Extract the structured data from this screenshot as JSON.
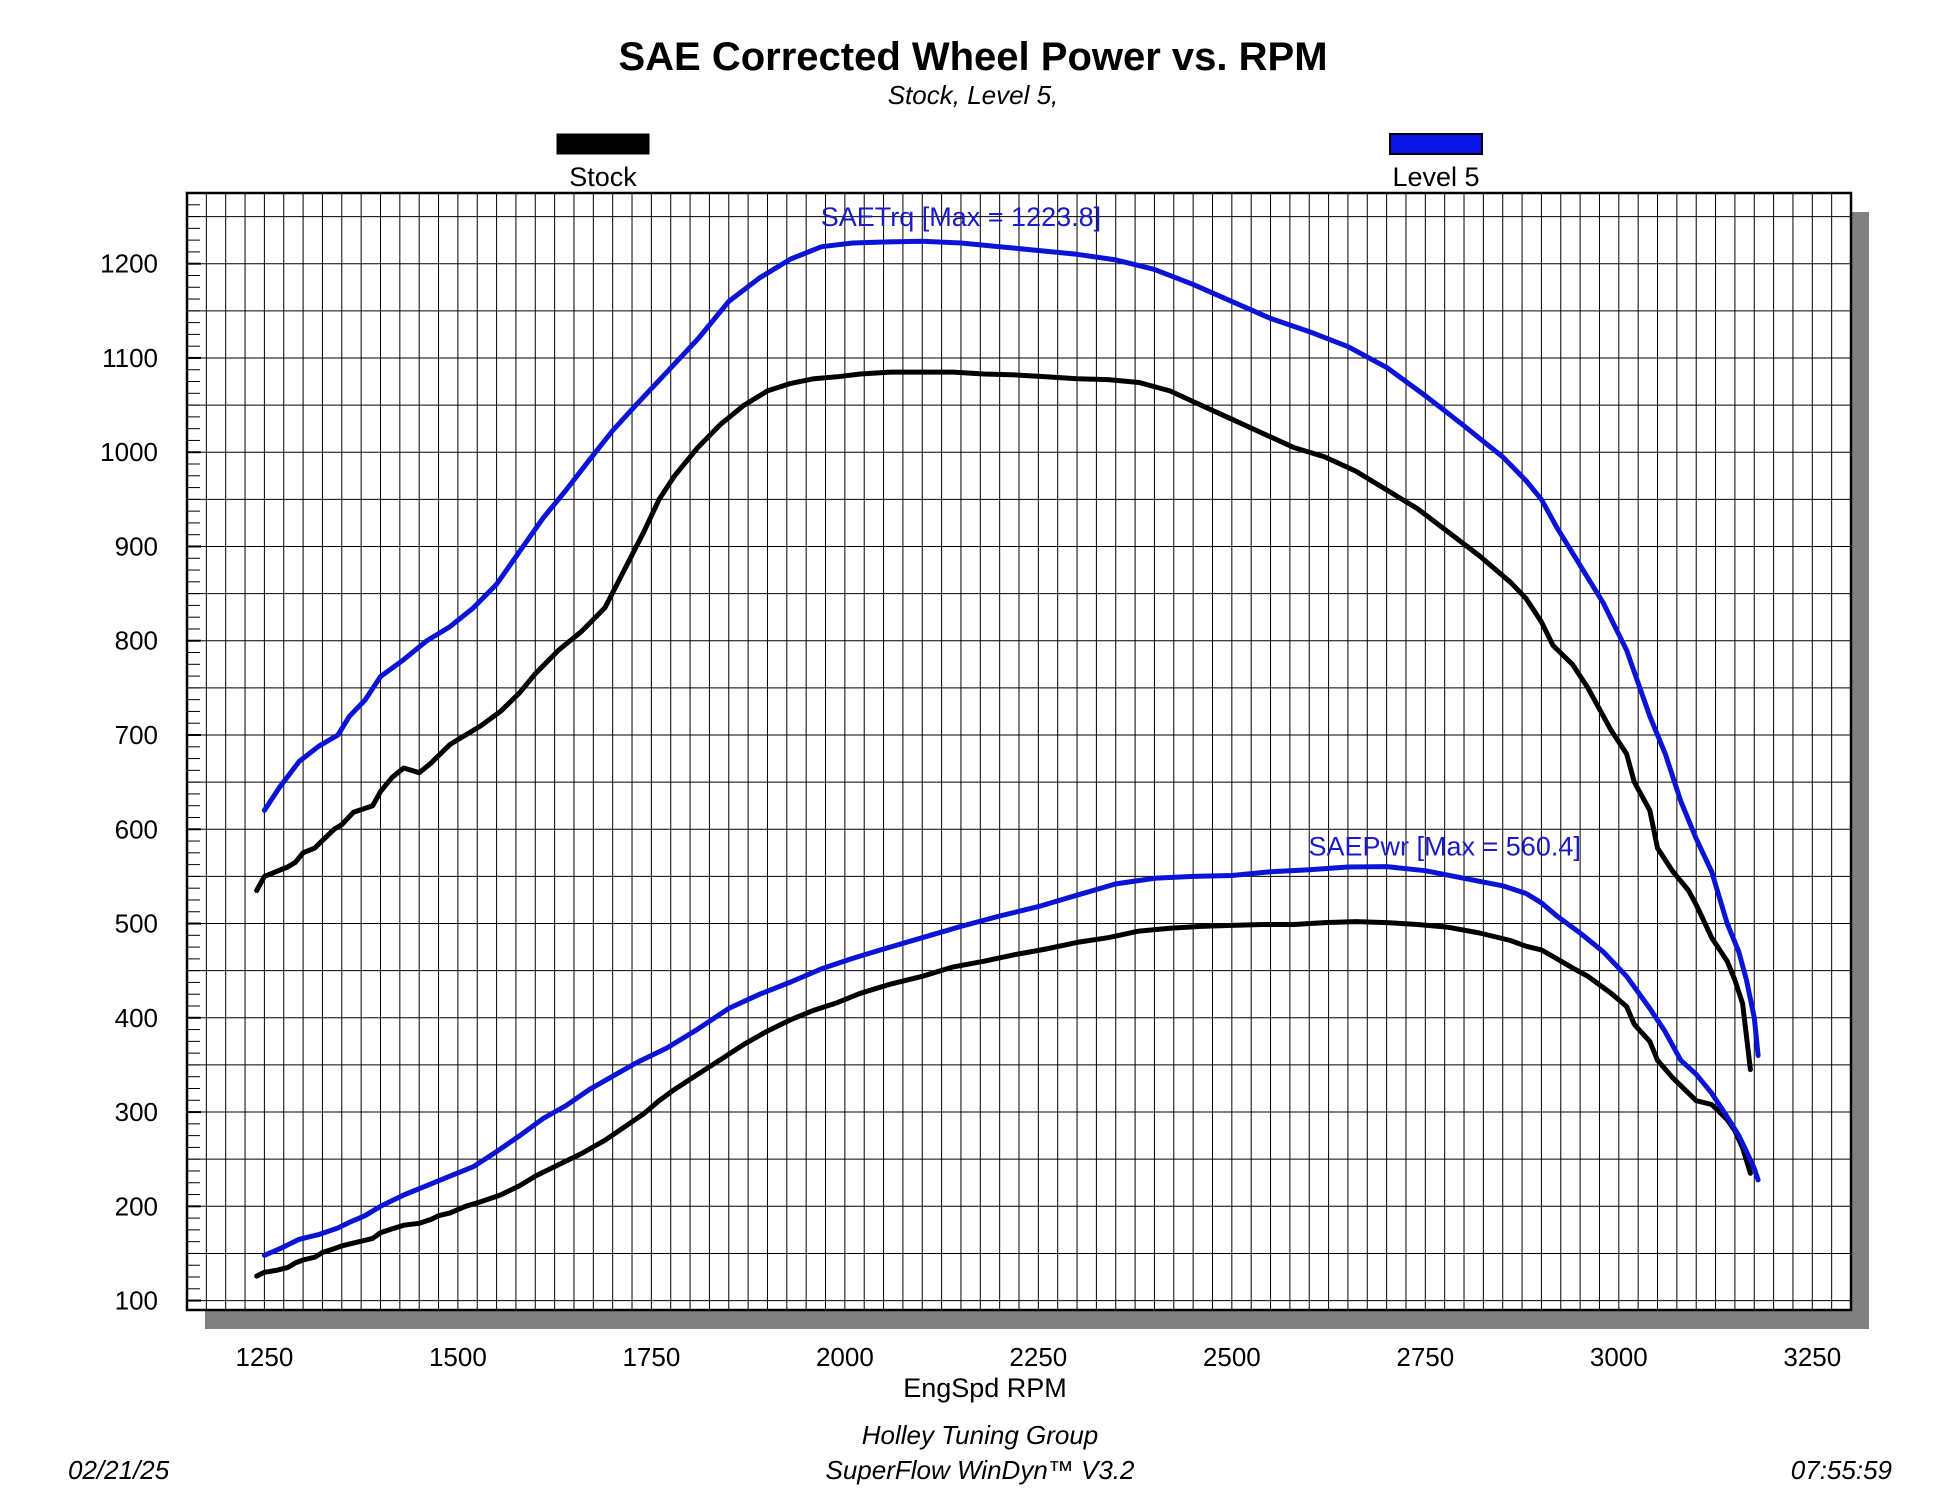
{
  "chart_data": {
    "type": "line",
    "title": "SAE Corrected Wheel Power vs. RPM",
    "subtitle": "Stock, Level 5,",
    "xlabel": "EngSpd RPM",
    "xlim": [
      1150,
      3300
    ],
    "ylim": [
      90,
      1275
    ],
    "x_ticks": [
      "1250",
      "1500",
      "1750",
      "2000",
      "2250",
      "2500",
      "2750",
      "3000",
      "3250"
    ],
    "y_ticks": [
      "100",
      "200",
      "300",
      "400",
      "500",
      "600",
      "700",
      "800",
      "900",
      "1000",
      "1100",
      "1200"
    ],
    "grid": true,
    "legend": [
      {
        "name": "Stock",
        "color": "#000000"
      },
      {
        "name": "Level 5",
        "color": "#0a14d6"
      }
    ],
    "annotations": [
      {
        "text": "SAETrq [Max = 1223.8]",
        "x": 2150,
        "y": 1240,
        "color": "#1a1ac8"
      },
      {
        "text": "SAEPwr [Max = 560.4]",
        "x": 2775,
        "y": 572,
        "color": "#1a1ac8"
      }
    ],
    "series": [
      {
        "name": "Stock",
        "quantity": "SAETrq",
        "color": "#000000",
        "x": [
          1240,
          1250,
          1265,
          1280,
          1290,
          1300,
          1315,
          1325,
          1340,
          1350,
          1365,
          1390,
          1400,
          1415,
          1430,
          1450,
          1465,
          1475,
          1490,
          1510,
          1530,
          1555,
          1580,
          1600,
          1630,
          1660,
          1690,
          1715,
          1740,
          1760,
          1780,
          1810,
          1840,
          1870,
          1900,
          1930,
          1960,
          1990,
          2020,
          2060,
          2100,
          2140,
          2180,
          2220,
          2260,
          2300,
          2340,
          2380,
          2420,
          2460,
          2500,
          2540,
          2580,
          2620,
          2660,
          2700,
          2740,
          2780,
          2820,
          2860,
          2880,
          2900,
          2915,
          2940,
          2960,
          2990,
          3010,
          3020,
          3040,
          3050,
          3070,
          3090,
          3100,
          3120,
          3140,
          3150,
          3160,
          3170
        ],
        "y": [
          535,
          550,
          555,
          560,
          565,
          575,
          580,
          588,
          600,
          605,
          618,
          625,
          640,
          655,
          665,
          660,
          670,
          678,
          690,
          700,
          710,
          725,
          745,
          765,
          790,
          810,
          835,
          875,
          915,
          950,
          975,
          1005,
          1030,
          1050,
          1065,
          1073,
          1078,
          1080,
          1083,
          1085,
          1085,
          1085,
          1083,
          1082,
          1080,
          1078,
          1077,
          1074,
          1065,
          1050,
          1035,
          1020,
          1005,
          995,
          980,
          960,
          940,
          915,
          890,
          862,
          845,
          820,
          795,
          775,
          750,
          705,
          680,
          650,
          620,
          580,
          555,
          535,
          520,
          485,
          460,
          440,
          415,
          345
        ]
      },
      {
        "name": "Level 5",
        "quantity": "SAETrq",
        "color": "#0a14d6",
        "x": [
          1250,
          1270,
          1295,
          1320,
          1345,
          1360,
          1380,
          1400,
          1430,
          1460,
          1490,
          1520,
          1550,
          1580,
          1610,
          1640,
          1670,
          1700,
          1730,
          1770,
          1810,
          1850,
          1890,
          1930,
          1970,
          2010,
          2050,
          2100,
          2150,
          2200,
          2250,
          2300,
          2350,
          2400,
          2450,
          2500,
          2550,
          2600,
          2650,
          2700,
          2750,
          2800,
          2850,
          2880,
          2900,
          2920,
          2950,
          2980,
          3010,
          3040,
          3060,
          3080,
          3100,
          3120,
          3140,
          3155,
          3165,
          3175,
          3180
        ],
        "y": [
          620,
          645,
          672,
          688,
          700,
          720,
          737,
          762,
          780,
          800,
          815,
          835,
          860,
          895,
          930,
          960,
          992,
          1023,
          1050,
          1085,
          1120,
          1160,
          1185,
          1205,
          1218,
          1222,
          1223,
          1223.8,
          1222,
          1218,
          1214,
          1210,
          1204,
          1194,
          1178,
          1160,
          1142,
          1128,
          1112,
          1090,
          1060,
          1028,
          995,
          970,
          950,
          920,
          880,
          840,
          790,
          720,
          680,
          630,
          590,
          555,
          500,
          470,
          440,
          400,
          360
        ]
      },
      {
        "name": "Stock",
        "quantity": "SAEPwr",
        "color": "#000000",
        "x": [
          1240,
          1250,
          1265,
          1280,
          1290,
          1300,
          1315,
          1325,
          1340,
          1350,
          1365,
          1390,
          1400,
          1415,
          1430,
          1450,
          1465,
          1475,
          1490,
          1510,
          1530,
          1555,
          1580,
          1600,
          1630,
          1660,
          1690,
          1715,
          1740,
          1760,
          1780,
          1810,
          1840,
          1870,
          1900,
          1930,
          1960,
          1990,
          2020,
          2060,
          2100,
          2140,
          2180,
          2220,
          2260,
          2300,
          2340,
          2380,
          2420,
          2460,
          2500,
          2540,
          2580,
          2620,
          2660,
          2700,
          2740,
          2780,
          2820,
          2860,
          2880,
          2900,
          2915,
          2940,
          2960,
          2990,
          3010,
          3020,
          3040,
          3050,
          3070,
          3090,
          3100,
          3120,
          3140,
          3150,
          3160,
          3170
        ],
        "y": [
          126,
          130,
          132,
          135,
          140,
          143,
          146,
          151,
          155,
          158,
          161,
          166,
          172,
          176,
          180,
          182,
          186,
          190,
          193,
          200,
          205,
          212,
          222,
          232,
          244,
          256,
          270,
          284,
          298,
          312,
          324,
          340,
          356,
          372,
          386,
          398,
          408,
          416,
          426,
          436,
          444,
          454,
          460,
          467,
          473,
          480,
          485,
          492,
          495,
          497,
          498,
          499,
          499,
          501,
          502,
          501,
          499,
          496,
          490,
          482,
          476,
          472,
          465,
          453,
          444,
          426,
          412,
          393,
          375,
          355,
          336,
          320,
          312,
          308,
          292,
          280,
          262,
          235
        ]
      },
      {
        "name": "Level 5",
        "quantity": "SAEPwr",
        "color": "#0a14d6",
        "x": [
          1250,
          1270,
          1295,
          1320,
          1345,
          1360,
          1380,
          1400,
          1430,
          1460,
          1490,
          1520,
          1550,
          1580,
          1610,
          1640,
          1670,
          1700,
          1730,
          1770,
          1810,
          1850,
          1890,
          1930,
          1970,
          2010,
          2050,
          2100,
          2150,
          2200,
          2250,
          2300,
          2350,
          2400,
          2450,
          2500,
          2550,
          2600,
          2650,
          2700,
          2750,
          2800,
          2850,
          2880,
          2900,
          2920,
          2950,
          2980,
          3010,
          3040,
          3060,
          3080,
          3100,
          3120,
          3140,
          3155,
          3165,
          3175,
          3180
        ],
        "y": [
          148,
          155,
          165,
          170,
          177,
          183,
          190,
          200,
          212,
          222,
          232,
          242,
          258,
          275,
          293,
          307,
          324,
          338,
          352,
          368,
          388,
          410,
          425,
          438,
          452,
          463,
          473,
          485,
          497,
          508,
          518,
          530,
          542,
          548,
          550,
          551,
          555,
          557,
          560,
          560.4,
          556,
          548,
          540,
          532,
          522,
          508,
          490,
          470,
          444,
          410,
          385,
          355,
          340,
          320,
          295,
          275,
          258,
          240,
          228
        ]
      }
    ]
  },
  "footer": {
    "organization": "Holley Tuning Group",
    "software": "SuperFlow WinDyn™ V3.2",
    "date": "02/21/25",
    "time": "07:55:59"
  }
}
